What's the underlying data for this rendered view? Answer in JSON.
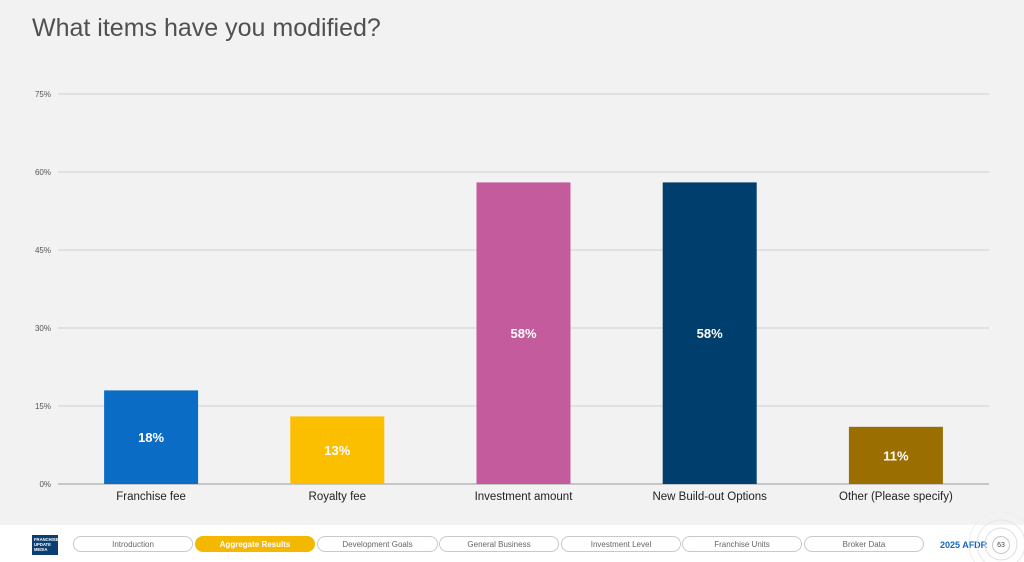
{
  "title": "What items have you modified?",
  "colors": {
    "background": "#f2f2f2",
    "grid": "#d0d0d0",
    "accent": "#f5b800",
    "brand": "#0a3e73",
    "report_label": "#1565c0"
  },
  "chart_data": {
    "type": "bar",
    "title": "What items have you modified?",
    "categories": [
      "Franchise fee",
      "Royalty fee",
      "Investment amount",
      "New Build-out Options",
      "Other (Please specify)"
    ],
    "values": [
      18,
      13,
      58,
      58,
      11
    ],
    "value_labels": [
      "18%",
      "13%",
      "58%",
      "58%",
      "11%"
    ],
    "bar_colors": [
      "#0a6cc4",
      "#fbbf00",
      "#c45b9c",
      "#003e6e",
      "#9a6e00"
    ],
    "ylim": [
      0,
      75
    ],
    "yticks": [
      0,
      15,
      30,
      45,
      60,
      75
    ],
    "ytick_labels": [
      "0%",
      "15%",
      "30%",
      "45%",
      "60%",
      "75%"
    ],
    "grid": true,
    "legend": "none",
    "xlabel": "",
    "ylabel": ""
  },
  "footer": {
    "logo_lines": [
      "FRANCHISE",
      "UPDATE",
      "MEDIA"
    ],
    "nav": [
      {
        "label": "Introduction",
        "active": false
      },
      {
        "label": "Aggregate Results",
        "active": true
      },
      {
        "label": "Development Goals",
        "active": false
      },
      {
        "label": "General Business",
        "active": false
      },
      {
        "label": "Investment Level",
        "active": false
      },
      {
        "label": "Franchise Units",
        "active": false
      },
      {
        "label": "Broker Data",
        "active": false
      }
    ],
    "report_label": "2025 AFDR",
    "page_number": "63"
  }
}
